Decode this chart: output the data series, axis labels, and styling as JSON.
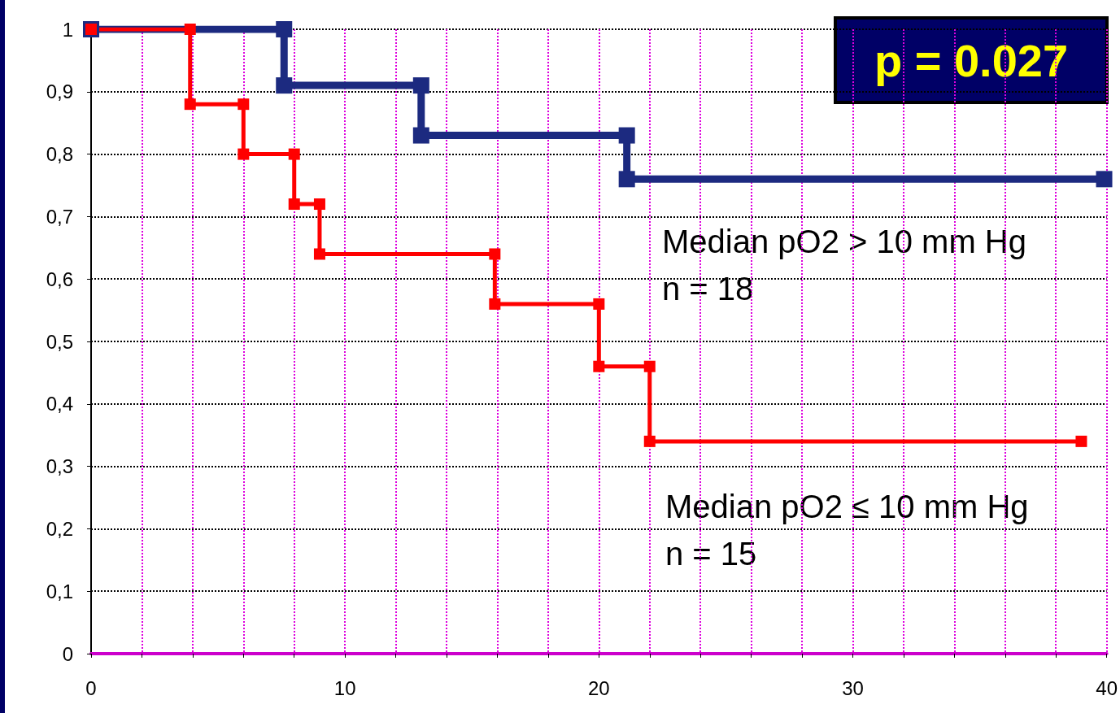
{
  "chart_data": {
    "type": "step",
    "annotations": [
      "p = 0.027",
      "Median pO2 > 10 mm Hg\nn = 18",
      "Median pO2 ≤ 10 mm Hg\nn = 15"
    ],
    "series": [
      {
        "color": "#1c2a80",
        "x": [
          0,
          7.6,
          7.6,
          13,
          13,
          21.1,
          21.1,
          39.9
        ],
        "values": [
          1,
          1,
          0.91,
          0.91,
          0.83,
          0.83,
          0.76,
          0.76
        ]
      },
      {
        "color": "#ff0000",
        "x": [
          0,
          3.9,
          3.9,
          6,
          6,
          8,
          8,
          9,
          9,
          15.9,
          15.9,
          20,
          20,
          22,
          22,
          39
        ],
        "values": [
          1,
          1,
          0.88,
          0.88,
          0.8,
          0.8,
          0.72,
          0.72,
          0.64,
          0.64,
          0.56,
          0.56,
          0.46,
          0.46,
          0.34,
          0.34
        ]
      }
    ],
    "xlim": [
      0,
      40
    ],
    "xticks": [
      0,
      {
        "value": 2,
        "label": null
      },
      {
        "value": 4,
        "label": null
      },
      {
        "value": 6,
        "label": null
      },
      {
        "value": 8,
        "label": null
      },
      10,
      {
        "value": 12,
        "label": null
      },
      {
        "value": 14,
        "label": null
      },
      {
        "value": 16,
        "label": null
      },
      {
        "value": 18,
        "label": null
      },
      20,
      {
        "value": 22,
        "label": null
      },
      {
        "value": 24,
        "label": null
      },
      {
        "value": 26,
        "label": null
      },
      {
        "value": 28,
        "label": null
      },
      30,
      {
        "value": 32,
        "label": null
      },
      {
        "value": 34,
        "label": null
      },
      {
        "value": 36,
        "label": null
      },
      {
        "value": 38,
        "label": null
      },
      40
    ],
    "ylim": [
      0,
      1
    ],
    "yticks": [
      0,
      {
        "value": 0.1,
        "label": "0,1"
      },
      {
        "value": 0.2,
        "label": "0,2"
      },
      {
        "value": 0.3,
        "label": "0,3"
      },
      {
        "value": 0.4,
        "label": "0,4"
      },
      {
        "value": 0.5,
        "label": "0,5"
      },
      {
        "value": 0.6,
        "label": "0,6"
      },
      {
        "value": 0.7,
        "label": "0,7"
      },
      {
        "value": 0.8,
        "label": "0,8"
      },
      {
        "value": 0.9,
        "label": "0,9"
      },
      1
    ],
    "grid": true,
    "marker": "square",
    "line_style": "solid"
  }
}
